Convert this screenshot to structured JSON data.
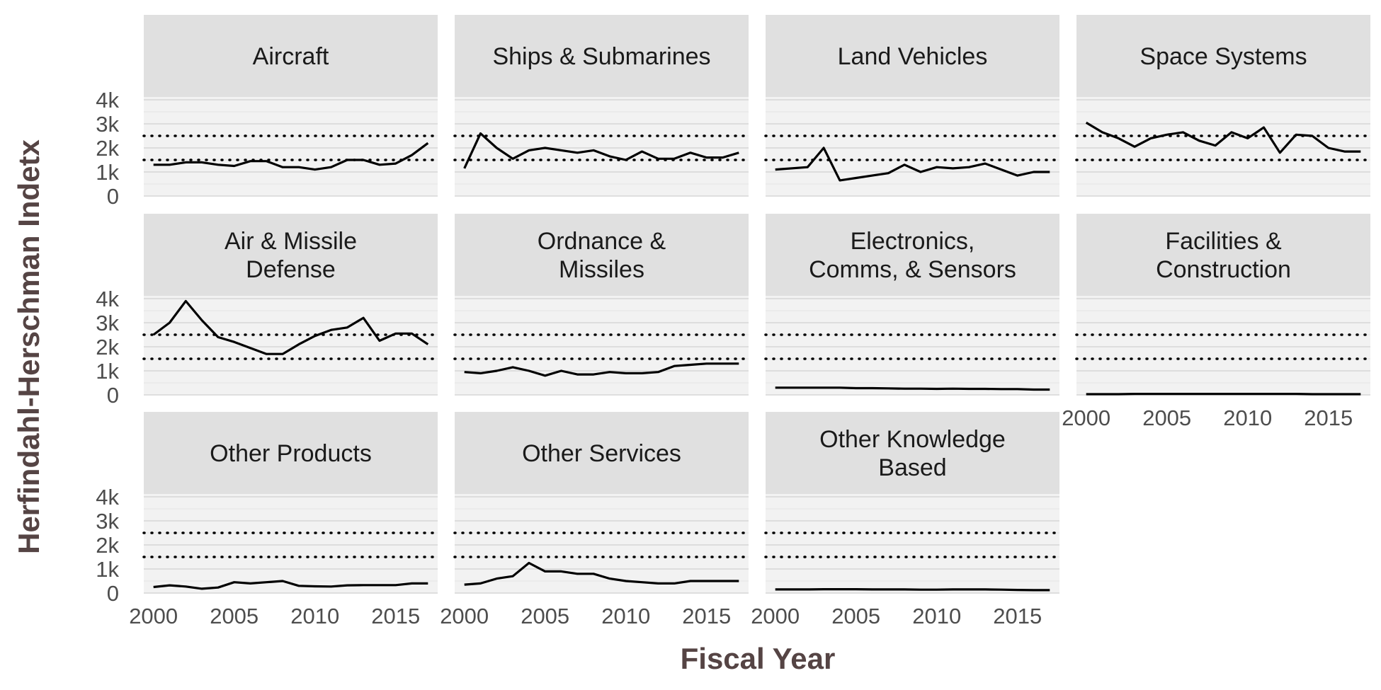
{
  "chart_data": {
    "type": "line",
    "xlabel": "Fiscal Year",
    "ylabel": "Herfindahl-Herschman Indetx",
    "x_ticks": [
      2000,
      2005,
      2010,
      2015
    ],
    "y_ticks": [
      0,
      1000,
      2000,
      3000,
      4000
    ],
    "y_tick_labels": [
      "0",
      "1k",
      "2k",
      "3k",
      "4k"
    ],
    "xlim": [
      1999.4,
      2017.6
    ],
    "ylim": [
      0,
      4000
    ],
    "reference_lines": [
      1500,
      2500
    ],
    "years": [
      2000,
      2001,
      2002,
      2003,
      2004,
      2005,
      2006,
      2007,
      2008,
      2009,
      2010,
      2011,
      2012,
      2013,
      2014,
      2015,
      2016,
      2017
    ],
    "panels": [
      {
        "title": [
          "Aircraft"
        ],
        "values": [
          1300,
          1300,
          1400,
          1400,
          1300,
          1250,
          1450,
          1450,
          1200,
          1200,
          1100,
          1200,
          1500,
          1500,
          1300,
          1350,
          1700,
          2200
        ]
      },
      {
        "title": [
          "Ships & Submarines"
        ],
        "values": [
          1150,
          2600,
          2000,
          1550,
          1900,
          2000,
          1900,
          1800,
          1900,
          1650,
          1500,
          1850,
          1550,
          1550,
          1800,
          1600,
          1600,
          1800
        ]
      },
      {
        "title": [
          "Land Vehicles"
        ],
        "values": [
          1100,
          null,
          1200,
          2000,
          650,
          750,
          850,
          950,
          1300,
          1000,
          1200,
          1150,
          1200,
          1350,
          1100,
          850,
          1000,
          1000
        ]
      },
      {
        "title": [
          "Space Systems"
        ],
        "values": [
          3050,
          2650,
          2400,
          2050,
          2400,
          2550,
          2650,
          2300,
          2100,
          2650,
          2400,
          2850,
          1800,
          2550,
          2500,
          2000,
          1850,
          1850
        ]
      },
      {
        "title": [
          "Air & Missile",
          "Defense"
        ],
        "values": [
          2500,
          3000,
          3900,
          3100,
          2400,
          2200,
          1950,
          1700,
          1700,
          2100,
          2450,
          2700,
          2800,
          3200,
          2250,
          2550,
          2550,
          2100
        ]
      },
      {
        "title": [
          "Ordnance &",
          "Missiles"
        ],
        "values": [
          950,
          900,
          1000,
          1150,
          1000,
          800,
          1000,
          850,
          850,
          950,
          900,
          900,
          950,
          1200,
          1250,
          1300,
          1300,
          1300
        ]
      },
      {
        "title": [
          "Electronics,",
          "Comms, & Sensors"
        ],
        "values": [
          300,
          300,
          300,
          300,
          300,
          280,
          280,
          270,
          260,
          260,
          250,
          260,
          250,
          250,
          240,
          240,
          220,
          220
        ]
      },
      {
        "title": [
          "Facilities &",
          "Construction"
        ],
        "values": [
          30,
          30,
          30,
          40,
          40,
          40,
          40,
          40,
          40,
          40,
          40,
          40,
          40,
          40,
          30,
          30,
          30,
          30
        ]
      },
      {
        "title": [
          "Other Products"
        ],
        "values": [
          250,
          320,
          270,
          180,
          230,
          450,
          400,
          450,
          500,
          300,
          280,
          270,
          320,
          330,
          330,
          330,
          400,
          400
        ]
      },
      {
        "title": [
          "Other Services"
        ],
        "values": [
          350,
          400,
          600,
          700,
          1250,
          900,
          900,
          800,
          800,
          600,
          500,
          450,
          400,
          400,
          500,
          500,
          500,
          500
        ]
      },
      {
        "title": [
          "Other Knowledge",
          "Based"
        ],
        "values": [
          150,
          150,
          150,
          160,
          160,
          160,
          150,
          150,
          150,
          140,
          140,
          150,
          150,
          150,
          140,
          130,
          120,
          120
        ]
      }
    ]
  }
}
